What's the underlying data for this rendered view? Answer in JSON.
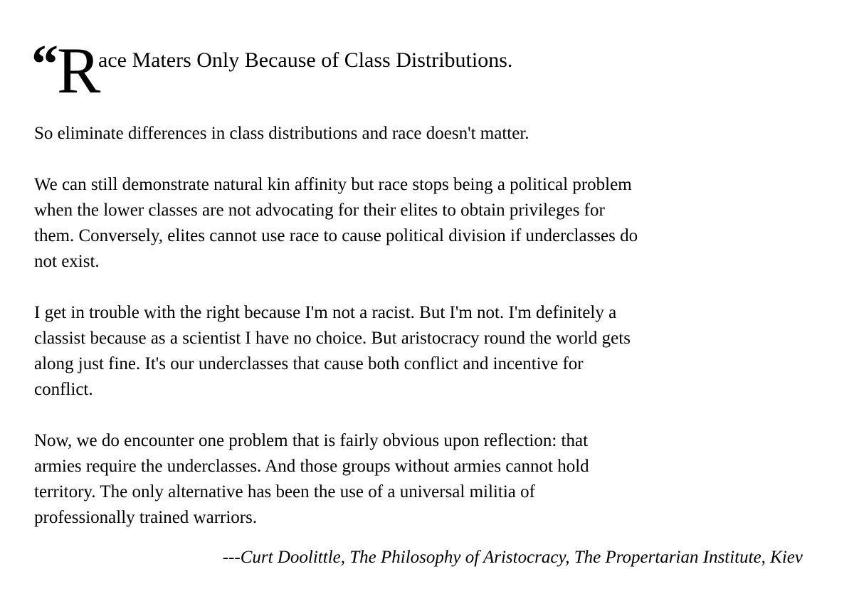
{
  "colors": {
    "background": "#ffffff",
    "text": "#000000"
  },
  "title": {
    "open_quote": "“",
    "drop_cap": "R",
    "rest": "ace Maters Only Because of Class Distributions."
  },
  "paragraphs": [
    [
      "So eliminate differences in class distributions and race doesn't matter."
    ],
    [
      "We can still demonstrate natural kin affinity but race stops being a political problem",
      "when the lower classes are not advocating for their elites to obtain privileges for",
      "them. Conversely, elites cannot use race to cause political division if underclasses do",
      "not exist."
    ],
    [
      "I get in trouble with the right because I'm not a racist. But I'm not. I'm definitely a",
      "classist because as a scientist I have no choice. But aristocracy round the world gets",
      "along just fine. It's our underclasses that cause both conflict and incentive for",
      "conflict."
    ],
    [
      "Now, we do encounter one problem that is fairly obvious upon reflection: that",
      "armies require the underclasses. And those groups without armies cannot hold",
      "territory. The only alternative has been the use of a universal militia of",
      "professionally trained warriors."
    ]
  ],
  "attribution": "---Curt Doolittle, The Philosophy of Aristocracy, The Propertarian Institute, Kiev"
}
